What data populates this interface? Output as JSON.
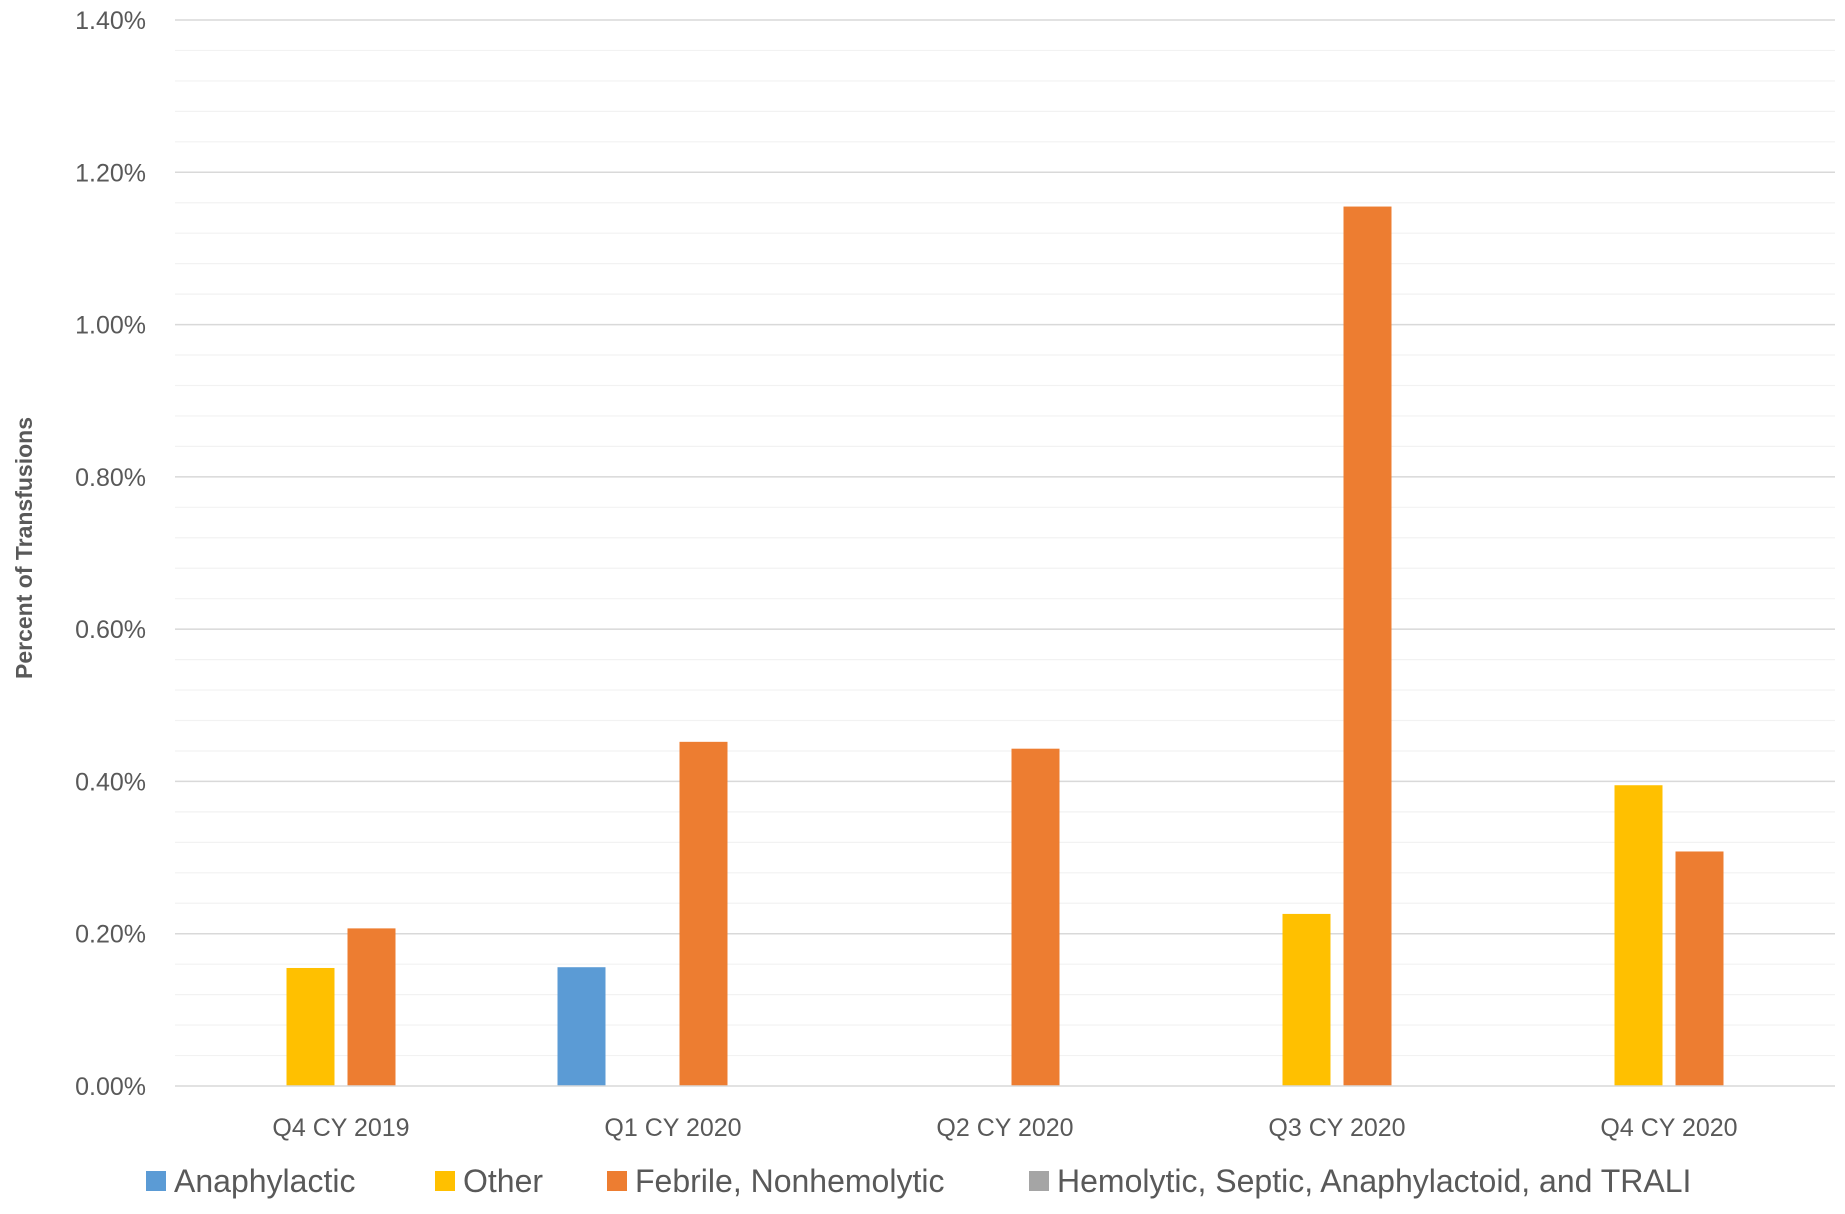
{
  "chart_data": {
    "type": "bar",
    "title": "",
    "xlabel": "",
    "ylabel": "Percent of Transfusions",
    "ylim": [
      0,
      0.014
    ],
    "y_tick_labels": [
      "0.00%",
      "0.20%",
      "0.40%",
      "0.60%",
      "0.80%",
      "1.00%",
      "1.20%",
      "1.40%"
    ],
    "y_ticks": [
      0,
      0.002,
      0.004,
      0.006,
      0.008,
      0.01,
      0.012,
      0.014
    ],
    "minor_grid_step": 0.0004,
    "grid": true,
    "legend_position": "bottom",
    "categories": [
      "Q4 CY 2019",
      "Q1 CY 2020",
      "Q2 CY 2020",
      "Q3 CY 2020",
      "Q4 CY 2020"
    ],
    "series": [
      {
        "name": "Anaphylactic",
        "color": "#5B9BD5",
        "values": [
          0,
          0.00156,
          0,
          0,
          0
        ]
      },
      {
        "name": "Other",
        "color": "#FFC000",
        "values": [
          0.00155,
          0,
          0,
          0.00226,
          0.00395
        ]
      },
      {
        "name": "Febrile, Nonhemolytic",
        "color": "#ED7D31",
        "values": [
          0.00207,
          0.00452,
          0.00443,
          0.01155,
          0.00308
        ]
      },
      {
        "name": "Hemolytic, Septic, Anaphylactoid, and TRALI",
        "color": "#A5A5A5",
        "values": [
          0,
          0,
          0,
          0,
          0
        ]
      }
    ]
  }
}
